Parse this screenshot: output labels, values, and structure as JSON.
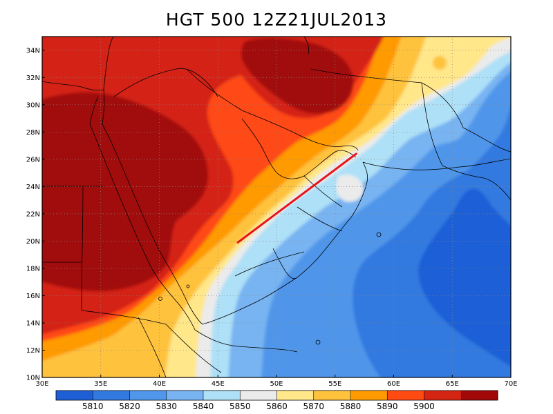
{
  "title": "HGT 500 12Z21JUL2013",
  "map": {
    "lon_range": [
      30,
      70
    ],
    "lat_range": [
      10,
      35
    ],
    "lon_ticks": [
      30,
      35,
      40,
      45,
      50,
      55,
      60,
      65,
      70
    ],
    "lon_tick_labels": [
      "30E",
      "35E",
      "40E",
      "45E",
      "50E",
      "55E",
      "60E",
      "65E",
      "70E"
    ],
    "lat_ticks": [
      10,
      12,
      14,
      16,
      18,
      20,
      22,
      24,
      26,
      28,
      30,
      32,
      34
    ],
    "lat_tick_labels": [
      "10N",
      "12N",
      "14N",
      "16N",
      "18N",
      "20N",
      "22N",
      "24N",
      "26N",
      "28N",
      "30N",
      "32N",
      "34N"
    ],
    "grid": "dotted",
    "red_line": {
      "from": [
        46.7,
        19.9
      ],
      "to": [
        56.8,
        26.4
      ],
      "color": "#e8141a"
    }
  },
  "colorbar": {
    "colors": [
      "#1e5fd6",
      "#3279e0",
      "#5096ea",
      "#78b4f2",
      "#aee0f7",
      "#ebebeb",
      "#ffe78a",
      "#ffc23d",
      "#ff9a00",
      "#ff4a12",
      "#d42412",
      "#a10808"
    ],
    "labels": [
      "5810",
      "5820",
      "5830",
      "5840",
      "5850",
      "5860",
      "5870",
      "5880",
      "5890",
      "5900"
    ]
  }
}
